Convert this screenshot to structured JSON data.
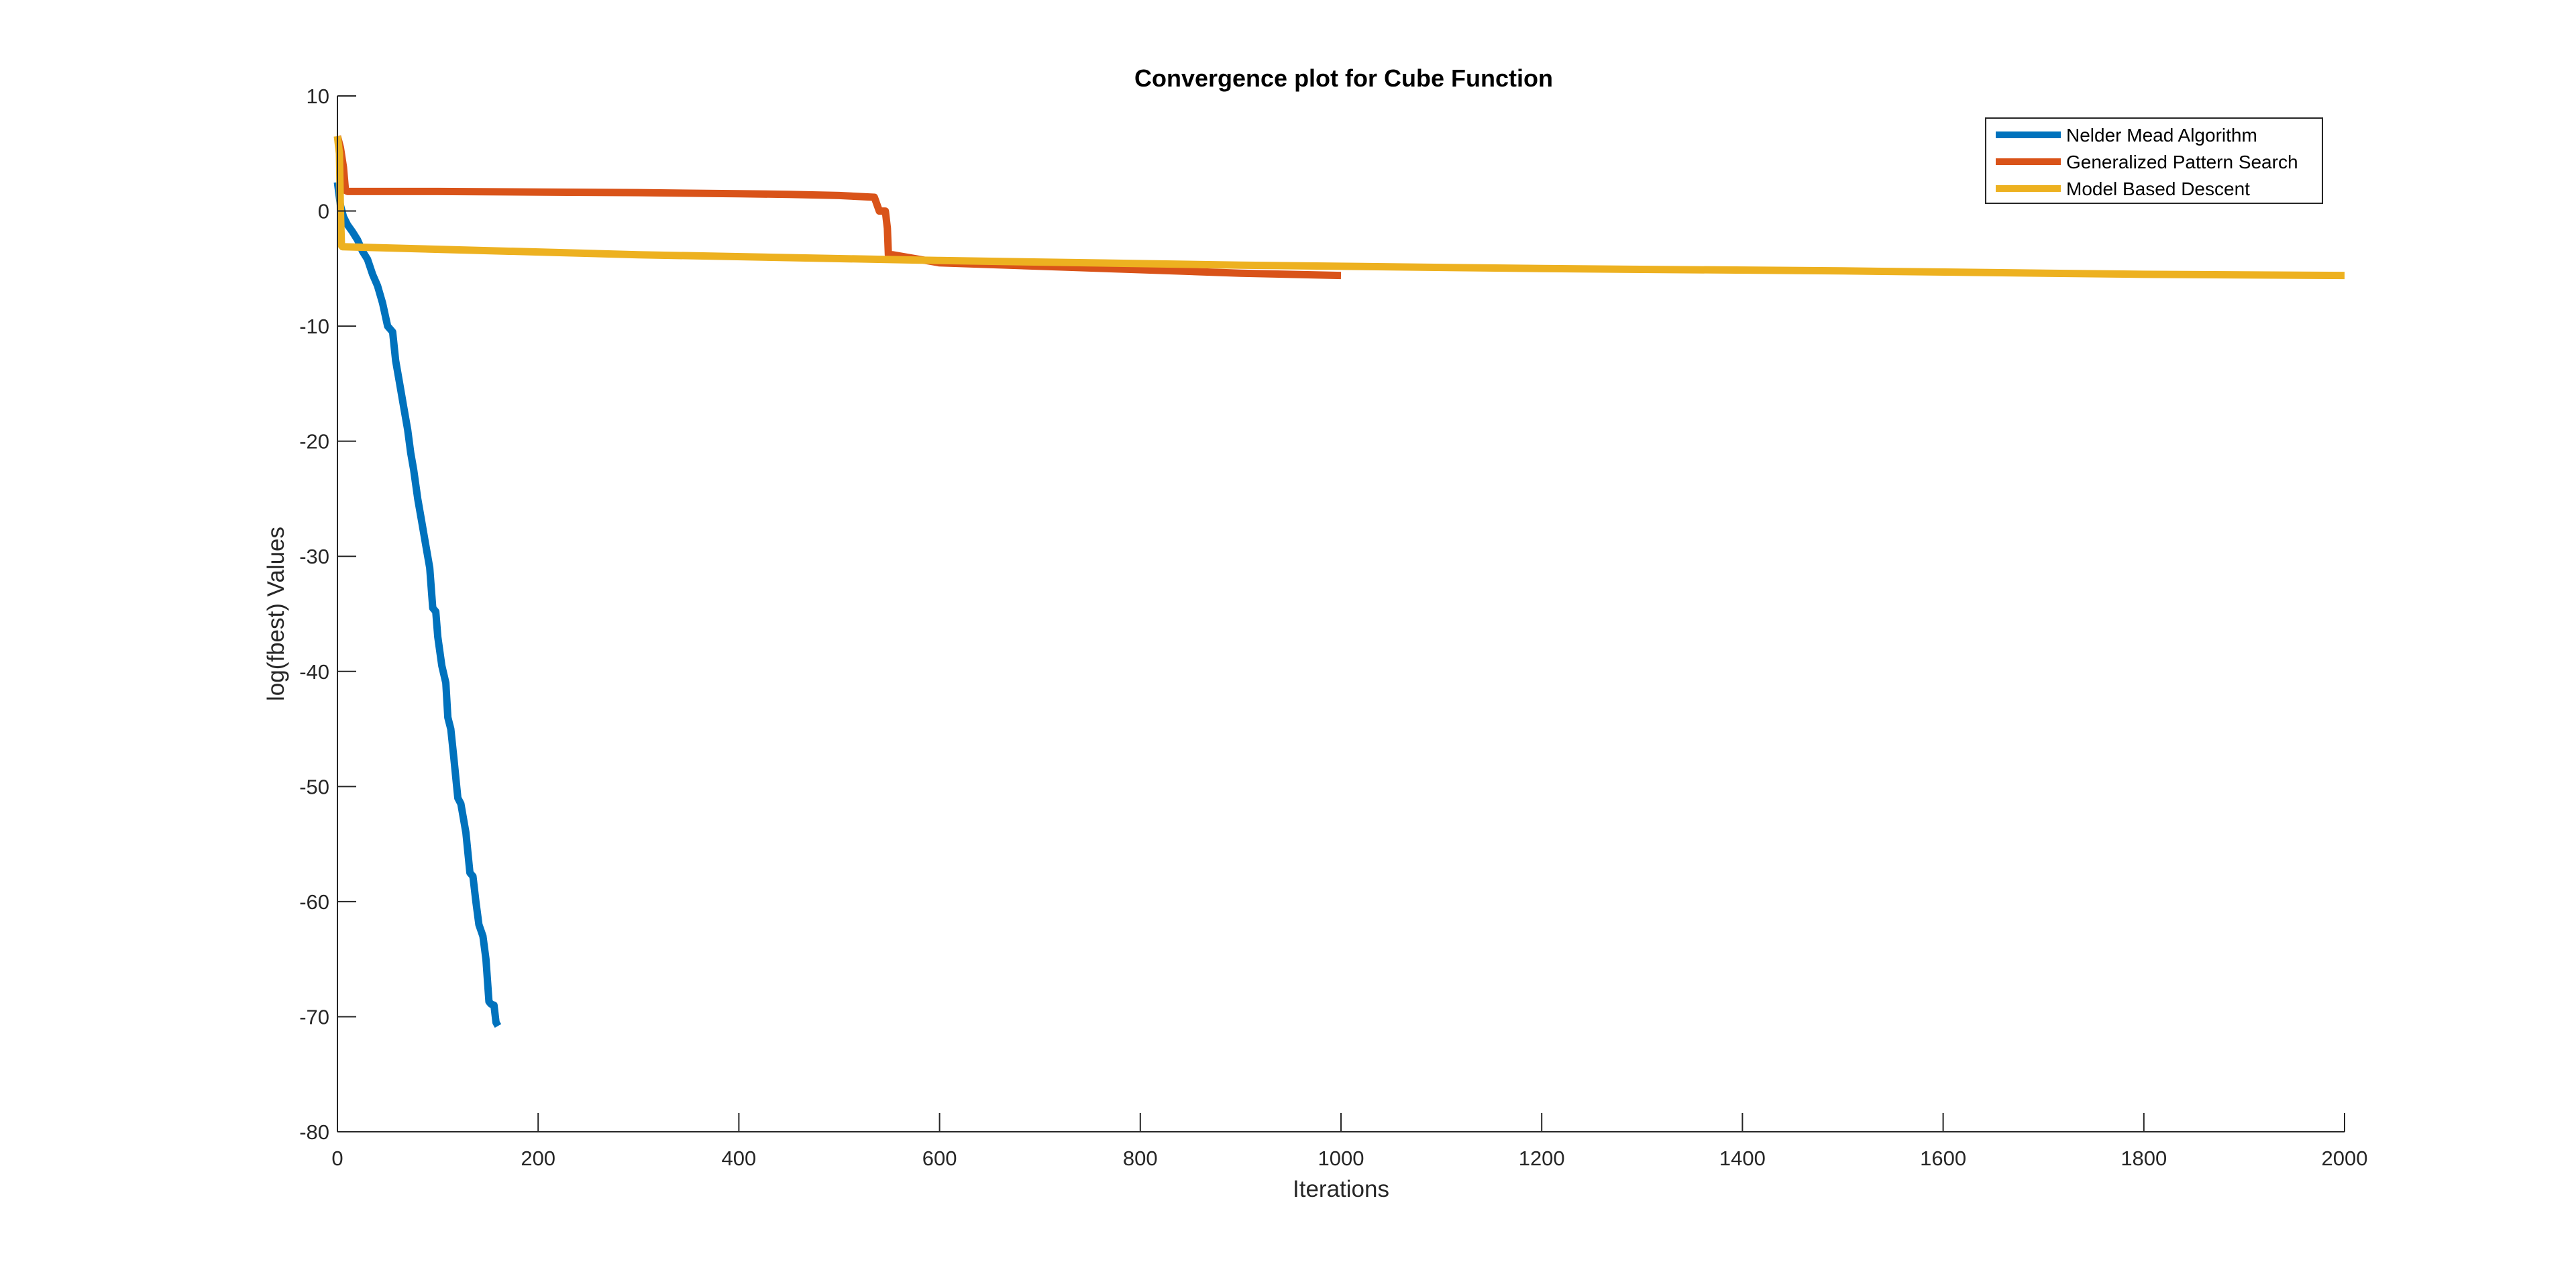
{
  "chart_data": {
    "type": "line",
    "title": "Convergence plot for Cube Function",
    "xlabel": "Iterations",
    "ylabel": "log(fbest) Values",
    "xlim": [
      0,
      2000
    ],
    "ylim": [
      -80,
      10
    ],
    "xticks": [
      0,
      200,
      400,
      600,
      800,
      1000,
      1200,
      1400,
      1600,
      1800,
      2000
    ],
    "yticks": [
      10,
      0,
      -10,
      -20,
      -30,
      -40,
      -50,
      -60,
      -70,
      -80
    ],
    "grid": false,
    "legend_position": "top-right",
    "series": [
      {
        "name": "Nelder Mead Algorithm",
        "color": "#0072BD",
        "x": [
          0,
          3,
          6,
          10,
          15,
          20,
          25,
          30,
          35,
          40,
          45,
          50,
          55,
          58,
          62,
          66,
          70,
          73,
          76,
          80,
          84,
          88,
          92,
          95,
          98,
          100,
          104,
          108,
          110,
          113,
          116,
          120,
          123,
          126,
          128,
          132,
          135,
          138,
          141,
          145,
          148,
          151,
          153,
          156,
          158,
          160
        ],
        "y": [
          2.5,
          0.5,
          -0.5,
          -1.2,
          -1.8,
          -2.5,
          -3.5,
          -4.2,
          -5.5,
          -6.5,
          -8,
          -10,
          -10.5,
          -13,
          -15,
          -17,
          -19,
          -21,
          -22.5,
          -25,
          -27,
          -29,
          -31,
          -34.5,
          -34.8,
          -37,
          -39.5,
          -41,
          -44,
          -45,
          -47.5,
          -51,
          -51.5,
          -53,
          -54,
          -57.5,
          -57.8,
          -60,
          -62,
          -63,
          -65,
          -68.7,
          -68.9,
          -69,
          -70.5,
          -70.8
        ]
      },
      {
        "name": "Generalized Pattern Search",
        "color": "#D95319",
        "x": [
          0,
          3,
          6,
          8,
          10,
          100,
          200,
          300,
          400,
          450,
          500,
          535,
          540,
          543,
          546,
          548,
          549,
          550,
          553,
          600,
          700,
          800,
          900,
          1000
        ],
        "y": [
          6.5,
          5.5,
          3.8,
          1.8,
          1.7,
          1.7,
          1.65,
          1.6,
          1.5,
          1.45,
          1.35,
          1.2,
          0.0,
          0.0,
          0.0,
          -1.5,
          -3.8,
          -3.8,
          -3.8,
          -4.5,
          -4.8,
          -5.1,
          -5.4,
          -5.6
        ]
      },
      {
        "name": "Model Based Descent",
        "color": "#EDB120",
        "x": [
          0,
          2,
          3,
          4,
          5,
          300,
          600,
          900,
          1200,
          1500,
          1800,
          2000
        ],
        "y": [
          6.5,
          5,
          0,
          -3.0,
          -3.1,
          -3.8,
          -4.3,
          -4.7,
          -5.0,
          -5.2,
          -5.5,
          -5.6
        ]
      }
    ]
  }
}
